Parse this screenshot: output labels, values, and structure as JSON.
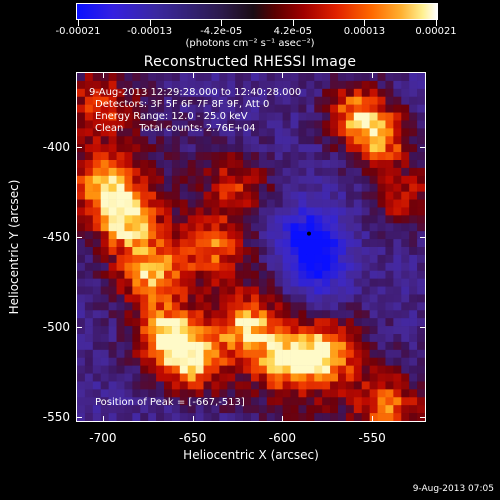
{
  "colorbar": {
    "ticks": [
      "-0.00021",
      "-0.00013",
      "-4.2e-05",
      "4.2e-05",
      "0.00013",
      "0.00021"
    ],
    "units": "(photons cm⁻² s⁻¹ asec⁻²)"
  },
  "title": "Reconstructed RHESSI Image",
  "annotation": {
    "time": "9-Aug-2013 12:29:28.000 to 12:40:28.000",
    "detectors": "Detectors: 3F 5F 6F 7F 8F 9F, Att 0",
    "energy": "Energy Range: 12.0 - 25.0 keV",
    "clean": "Clean     Total counts: 2.76E+04",
    "peak": "Position of Peak = [-667,-513]"
  },
  "chart_data": {
    "type": "heatmap",
    "title": "Reconstructed RHESSI Image",
    "xlabel": "Heliocentric X (arcsec)",
    "ylabel": "Heliocentric Y (arcsec)",
    "xlim": [
      -715,
      -520
    ],
    "ylim": [
      -553,
      -358
    ],
    "x_ticks": [
      "-700",
      "-650",
      "-600",
      "-550"
    ],
    "y_ticks": [
      "-400",
      "-450",
      "-500",
      "-550"
    ],
    "x_tick_values": [
      -700,
      -650,
      -600,
      -550
    ],
    "y_tick_values": [
      -400,
      -450,
      -500,
      -550
    ],
    "colorbar_range": [
      -0.00021,
      0.00021
    ],
    "colormap": "blue-purple-black-red-yellow-white",
    "peak_position": [
      -667,
      -513
    ],
    "hot_spots": [
      {
        "x": -700,
        "y": -420,
        "level": 0.75
      },
      {
        "x": -688,
        "y": -440,
        "level": 0.85
      },
      {
        "x": -675,
        "y": -470,
        "level": 0.8
      },
      {
        "x": -665,
        "y": -505,
        "level": 0.95
      },
      {
        "x": -650,
        "y": -520,
        "level": 0.85
      },
      {
        "x": -620,
        "y": -500,
        "level": 0.75
      },
      {
        "x": -600,
        "y": -520,
        "level": 0.7
      },
      {
        "x": -575,
        "y": -515,
        "level": 0.9
      },
      {
        "x": -545,
        "y": -395,
        "level": 0.85
      },
      {
        "x": -560,
        "y": -380,
        "level": 0.75
      },
      {
        "x": -530,
        "y": -430,
        "level": 0.6
      },
      {
        "x": -625,
        "y": -420,
        "level": 0.55
      },
      {
        "x": -640,
        "y": -455,
        "level": 0.6
      },
      {
        "x": -540,
        "y": -545,
        "level": 0.65
      },
      {
        "x": -700,
        "y": -375,
        "level": 0.5
      }
    ],
    "cold_spots": [
      {
        "x": -585,
        "y": -450,
        "level": -0.9
      },
      {
        "x": -580,
        "y": -470,
        "level": -0.6
      }
    ]
  },
  "timestamp": "9-Aug-2013 07:05"
}
